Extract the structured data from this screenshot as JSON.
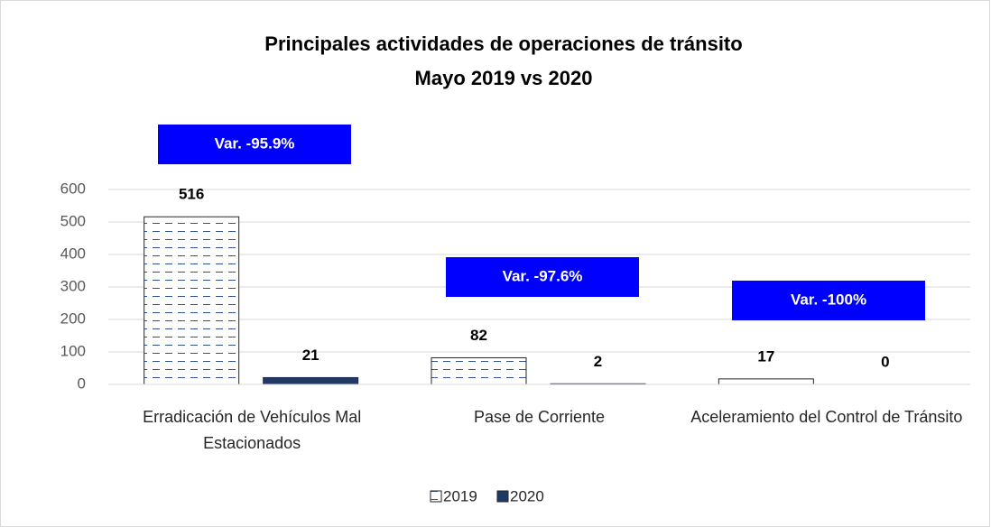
{
  "chart_data": {
    "type": "bar",
    "title": "Principales actividades de operaciones de tránsito",
    "subtitle": "Mayo 2019 vs 2020",
    "categories": [
      "Erradicación de Vehículos Mal Estacionados",
      "Pase de Corriente",
      "Aceleramiento del Control de Tránsito"
    ],
    "series": [
      {
        "name": "2019",
        "color": "#ffffff",
        "values": [
          516,
          82,
          17
        ]
      },
      {
        "name": "2020",
        "color": "#203864",
        "values": [
          21,
          2,
          0
        ]
      }
    ],
    "annotations": [
      "Var. -95.9%",
      "Var. -97.6%",
      "Var. -100%"
    ],
    "ylim": [
      0,
      600
    ],
    "yticks": [
      0,
      100,
      200,
      300,
      400,
      500,
      600
    ],
    "grid": true,
    "legend": "bottom"
  }
}
